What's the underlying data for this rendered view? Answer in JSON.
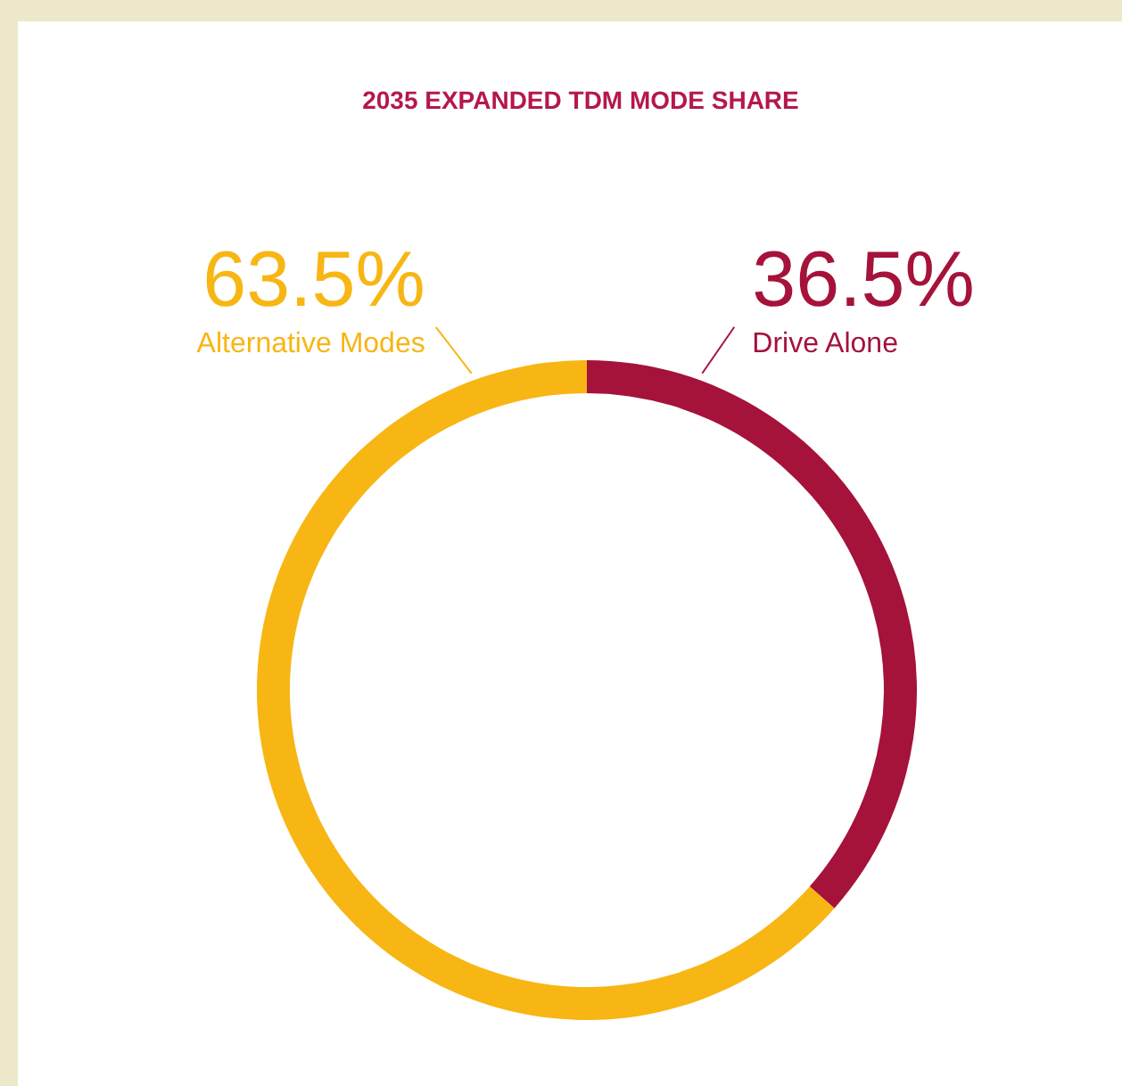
{
  "chart_data": {
    "type": "donut",
    "title": "2035 EXPANDED TDM MODE SHARE",
    "categories": [
      "Drive Alone",
      "Alternative Modes"
    ],
    "values": [
      36.5,
      63.5
    ],
    "colors": [
      "#a5123a",
      "#f7b614"
    ],
    "value_labels": [
      "36.5%",
      "63.5%"
    ]
  }
}
